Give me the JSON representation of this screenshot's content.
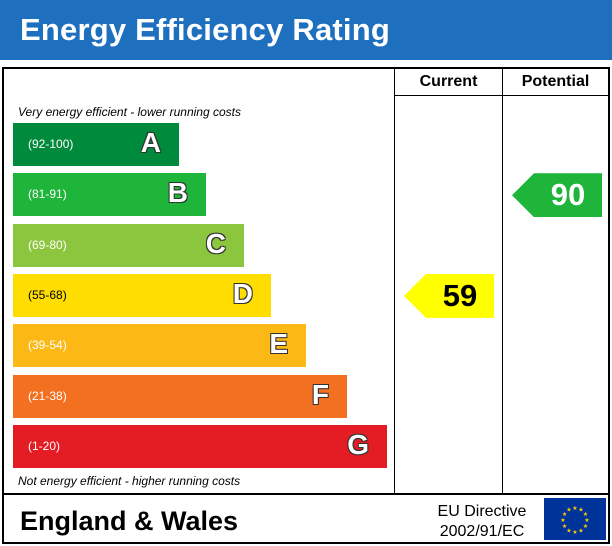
{
  "header": {
    "title": "Energy Efficiency Rating"
  },
  "columns": {
    "current": "Current",
    "potential": "Potential"
  },
  "notes": {
    "top": "Very energy efficient - lower running costs",
    "bottom": "Not energy efficient - higher running costs"
  },
  "chart_data": {
    "type": "bar",
    "title": "Energy Efficiency Rating",
    "categories": [
      "A",
      "B",
      "C",
      "D",
      "E",
      "F",
      "G"
    ],
    "ranges": [
      "(92-100)",
      "(81-91)",
      "(69-80)",
      "(55-68)",
      "(39-54)",
      "(21-38)",
      "(1-20)"
    ],
    "colors": [
      "#008a3b",
      "#1eb53a",
      "#8cc63f",
      "#ffdd00",
      "#fcb814",
      "#f37021",
      "#e31d23"
    ],
    "current": {
      "value": 59,
      "band": "D",
      "color": "#ffff00"
    },
    "potential": {
      "value": 90,
      "band": "B",
      "color": "#1eb53a"
    }
  },
  "footer": {
    "region": "England & Wales",
    "directive_line1": "EU Directive",
    "directive_line2": "2002/91/EC",
    "flag_icon": "eu-flag-icon"
  }
}
